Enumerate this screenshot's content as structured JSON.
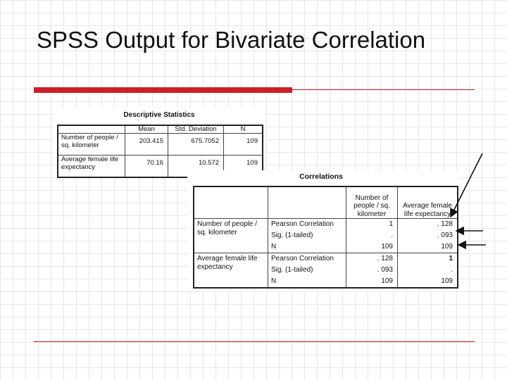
{
  "slide": {
    "title": "SPSS Output for Bivariate Correlation",
    "accent_color": "#cc1f2a"
  },
  "descriptive": {
    "caption": "Descriptive Statistics",
    "headers": [
      "",
      "Mean",
      "Std. Deviation",
      "N"
    ],
    "rows": [
      {
        "label": "Number of people / sq. kilometer",
        "mean": "203.415",
        "sd": "675.7052",
        "n": "109"
      },
      {
        "label": "Average female life expectancy",
        "mean": "70.16",
        "sd": "10.572",
        "n": "109"
      }
    ]
  },
  "correlations": {
    "caption": "Correlations",
    "col_headers": [
      "Number of people / sq. kilometer",
      "Average female life expectancy"
    ],
    "stat_labels": [
      "Pearson Correlation",
      "Sig. (1-tailed)",
      "N"
    ],
    "rows": [
      {
        "label": "Number of people / sq. kilometer",
        "col1": [
          "1",
          ".",
          "109"
        ],
        "col2": [
          ". 128",
          ". 093",
          "109"
        ]
      },
      {
        "label": "Average female life expectancy",
        "col1": [
          ". 128",
          ". 093",
          "109"
        ],
        "col2": [
          "1",
          ".",
          "109"
        ]
      }
    ]
  }
}
